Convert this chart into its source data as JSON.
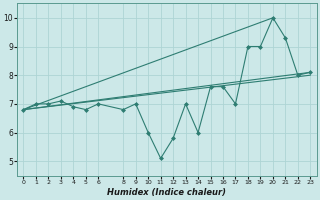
{
  "xlabel": "Humidex (Indice chaleur)",
  "bg_color": "#cce8e8",
  "line_color": "#2e7d72",
  "grid_color": "#aed4d4",
  "xlim": [
    -0.5,
    23.5
  ],
  "ylim": [
    4.5,
    10.5
  ],
  "xticks": [
    0,
    1,
    2,
    3,
    4,
    5,
    6,
    8,
    9,
    10,
    11,
    12,
    13,
    14,
    15,
    16,
    17,
    18,
    19,
    20,
    21,
    22,
    23
  ],
  "yticks": [
    5,
    6,
    7,
    8,
    9,
    10
  ],
  "main_x": [
    0,
    1,
    2,
    3,
    4,
    5,
    6,
    8,
    9,
    10,
    11,
    12,
    13,
    14,
    15,
    16,
    17,
    18,
    19,
    20,
    21,
    22,
    23
  ],
  "main_y": [
    6.8,
    7.0,
    7.0,
    7.1,
    6.9,
    6.8,
    7.0,
    6.8,
    7.0,
    6.0,
    5.1,
    5.8,
    7.0,
    6.0,
    7.6,
    7.6,
    7.0,
    9.0,
    9.0,
    10.0,
    9.3,
    8.0,
    8.1
  ],
  "line1_x": [
    0,
    20
  ],
  "line1_y": [
    6.8,
    10.0
  ],
  "line2_x": [
    0,
    23
  ],
  "line2_y": [
    6.8,
    8.1
  ],
  "line3_x": [
    0,
    23
  ],
  "line3_y": [
    6.8,
    8.0
  ]
}
